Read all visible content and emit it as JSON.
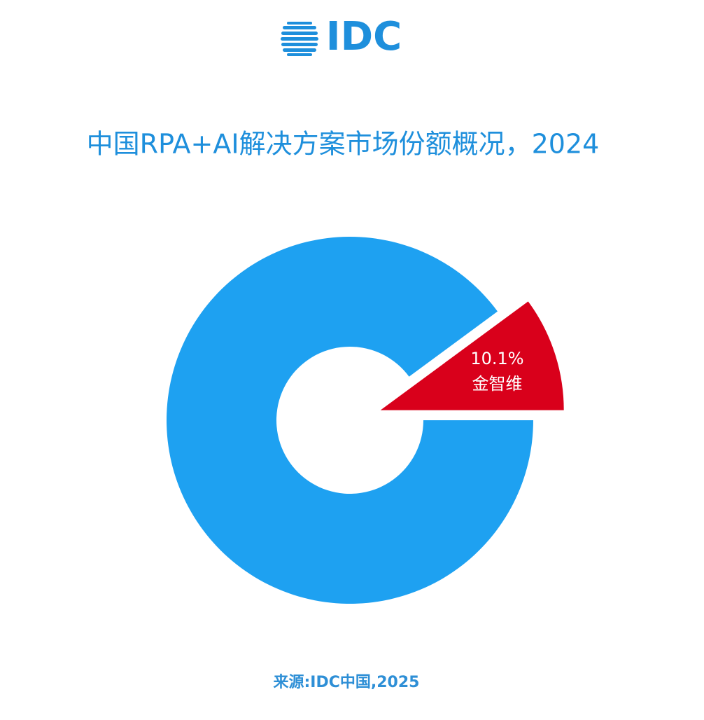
{
  "logo": "IDC",
  "chart_data": {
    "type": "donut",
    "title": "中国RPA+AI解决方案市场份额概况，2024",
    "categories": [
      "金智维",
      null
    ],
    "values": [
      10.1,
      89.9
    ],
    "value_labels": [
      "10.1%",
      null
    ],
    "colors": [
      "#d9001b",
      "#1ea1f1"
    ]
  },
  "source": "来源:IDC中国,2025"
}
